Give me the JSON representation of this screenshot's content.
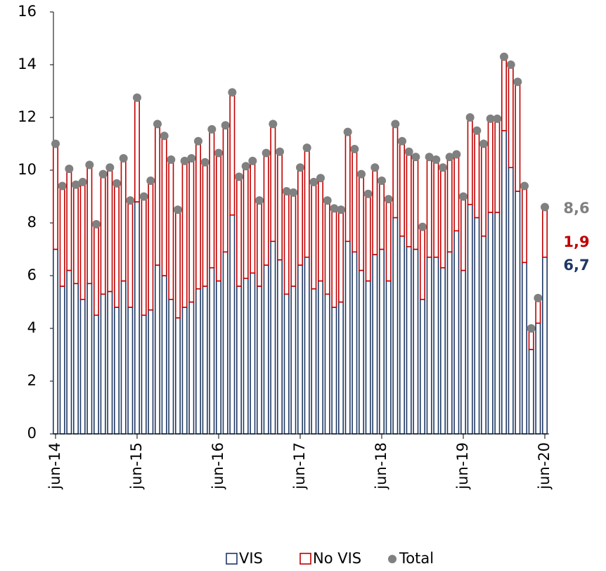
{
  "chart_data": {
    "type": "stacked_bar",
    "categories": [
      "jun-14",
      null,
      null,
      null,
      null,
      null,
      null,
      null,
      null,
      null,
      null,
      null,
      "jun-15",
      null,
      null,
      null,
      null,
      null,
      null,
      null,
      null,
      null,
      null,
      null,
      "jun-16",
      null,
      null,
      null,
      null,
      null,
      null,
      null,
      null,
      null,
      null,
      null,
      "jun-17",
      null,
      null,
      null,
      null,
      null,
      null,
      null,
      null,
      null,
      null,
      null,
      "jun-18",
      null,
      null,
      null,
      null,
      null,
      null,
      null,
      null,
      null,
      null,
      null,
      "jun-19",
      null,
      null,
      null,
      null,
      null,
      null,
      null,
      null,
      null,
      null,
      null,
      "jun-20"
    ],
    "series": [
      {
        "name": "VIS",
        "color": "#1f3864",
        "values": [
          7.0,
          5.6,
          6.2,
          5.7,
          5.1,
          5.7,
          4.5,
          5.3,
          5.4,
          4.8,
          5.8,
          4.8,
          8.8,
          4.5,
          4.7,
          6.4,
          6.0,
          5.1,
          4.4,
          4.8,
          5.0,
          5.5,
          5.6,
          6.3,
          5.8,
          6.9,
          8.3,
          5.6,
          5.9,
          6.1,
          5.6,
          6.4,
          7.3,
          6.6,
          5.3,
          5.6,
          6.4,
          6.7,
          5.5,
          5.8,
          5.3,
          4.8,
          5.0,
          7.3,
          6.9,
          6.2,
          5.8,
          6.8,
          7.0,
          5.8,
          8.2,
          7.5,
          7.1,
          7.0,
          5.1,
          6.7,
          6.7,
          6.3,
          6.9,
          7.7,
          6.2,
          8.7,
          8.2,
          7.5,
          8.4,
          8.4,
          11.5,
          10.1,
          9.2,
          6.5,
          3.2,
          4.2,
          6.7
        ]
      },
      {
        "name": "No VIS",
        "color": "#c00000",
        "values": [
          4.0,
          3.8,
          3.85,
          3.75,
          4.45,
          4.5,
          3.45,
          4.55,
          4.7,
          4.7,
          4.65,
          4.05,
          3.95,
          4.5,
          4.9,
          5.35,
          5.3,
          5.3,
          4.1,
          5.55,
          5.45,
          5.6,
          4.7,
          5.25,
          4.85,
          4.8,
          4.65,
          4.15,
          4.25,
          4.25,
          3.25,
          4.25,
          4.45,
          4.1,
          3.9,
          3.55,
          3.7,
          4.15,
          4.05,
          3.9,
          3.55,
          3.75,
          3.5,
          4.15,
          3.9,
          3.65,
          3.3,
          3.3,
          2.6,
          3.1,
          3.55,
          3.6,
          3.6,
          3.5,
          2.75,
          3.8,
          3.7,
          3.8,
          3.6,
          2.9,
          2.8,
          3.3,
          3.3,
          3.5,
          3.55,
          3.55,
          2.8,
          3.9,
          4.15,
          2.9,
          0.8,
          0.95,
          1.9
        ]
      },
      {
        "name": "Total",
        "color": "#808080",
        "values": [
          11.0,
          9.4,
          10.05,
          9.45,
          9.55,
          10.2,
          7.95,
          9.85,
          10.1,
          9.5,
          10.45,
          8.85,
          12.75,
          9.0,
          9.6,
          11.75,
          11.3,
          10.4,
          8.5,
          10.35,
          10.45,
          11.1,
          10.3,
          11.55,
          10.65,
          11.7,
          12.95,
          9.75,
          10.15,
          10.35,
          8.85,
          10.65,
          11.75,
          10.7,
          9.2,
          9.15,
          10.1,
          10.85,
          9.55,
          9.7,
          8.85,
          8.55,
          8.5,
          11.45,
          10.8,
          9.85,
          9.1,
          10.1,
          9.6,
          8.9,
          11.75,
          11.1,
          10.7,
          10.5,
          7.85,
          10.5,
          10.4,
          10.1,
          10.5,
          10.6,
          9.0,
          12.0,
          11.5,
          11.0,
          11.95,
          11.95,
          14.3,
          14.0,
          13.35,
          9.4,
          4.0,
          5.15,
          8.6
        ]
      }
    ],
    "annotations": [
      {
        "text": "8,6",
        "color": "#808080"
      },
      {
        "text": "1,9",
        "color": "#c00000"
      },
      {
        "text": "6,7",
        "color": "#1f3864"
      }
    ],
    "ylim": [
      0,
      16
    ],
    "yticks": [
      0,
      2,
      4,
      6,
      8,
      10,
      12,
      14,
      16
    ],
    "legend": "bottom"
  }
}
